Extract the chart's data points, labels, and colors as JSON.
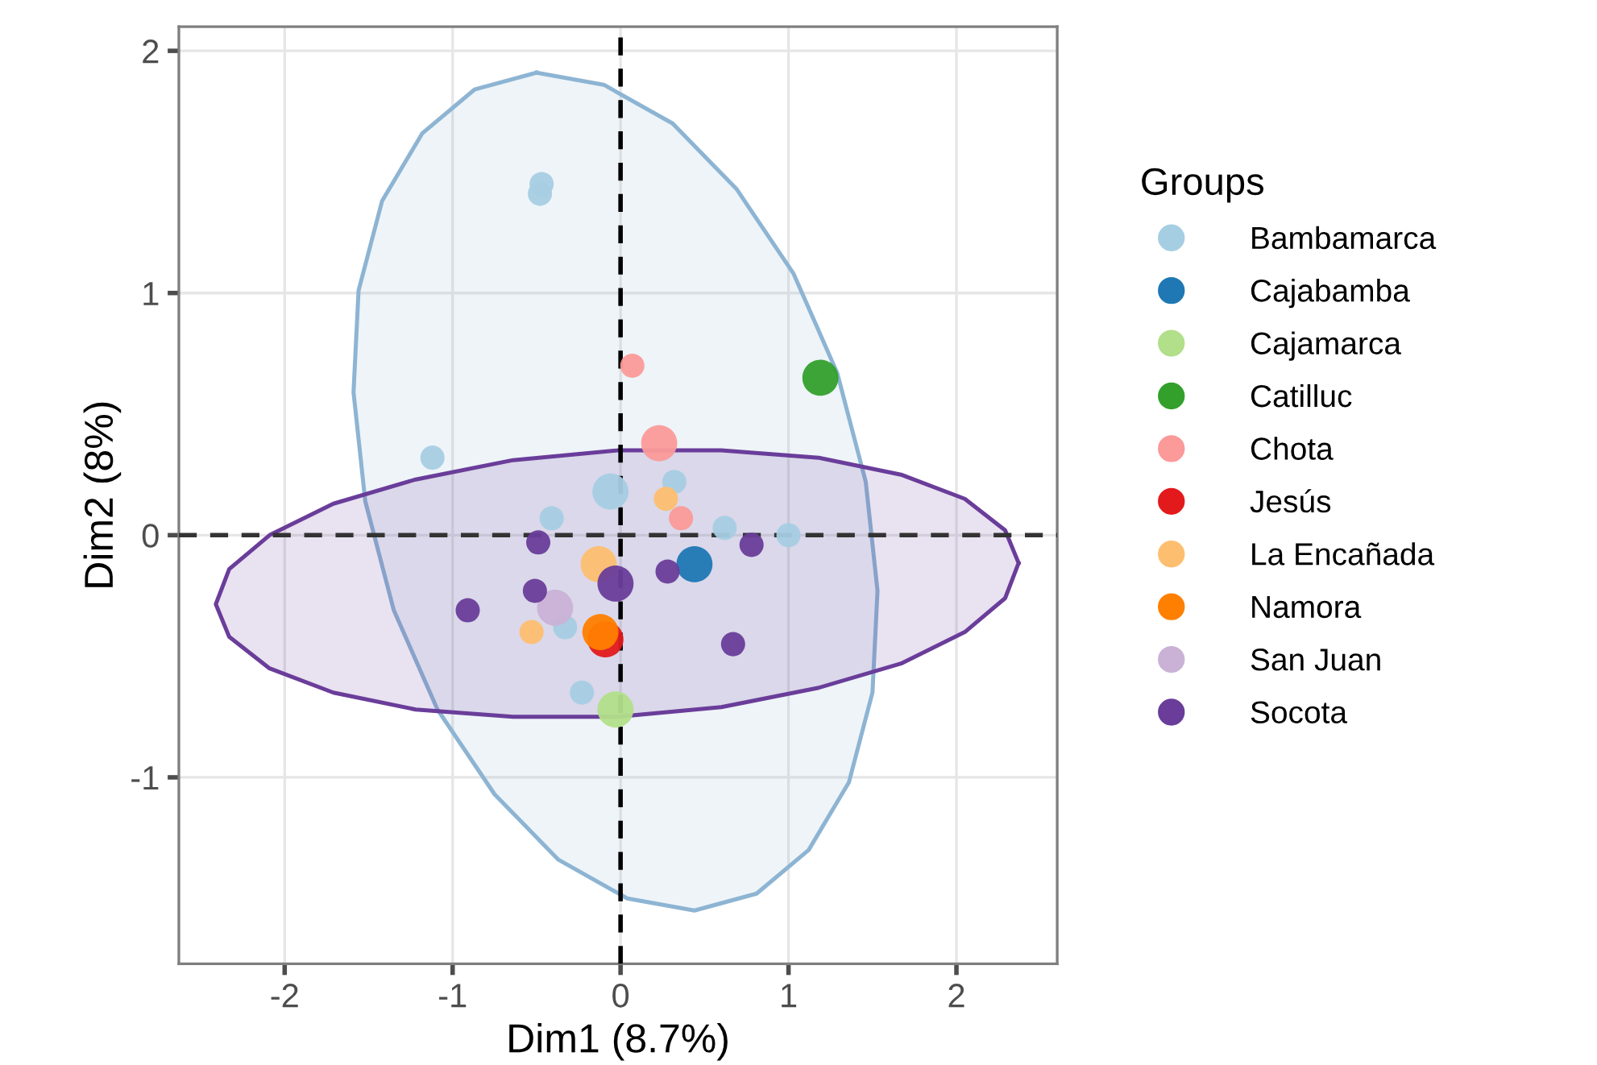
{
  "chart_data": {
    "type": "bubble",
    "xlabel": "Dim1 (8.7%)",
    "ylabel": "Dim2 (8%)",
    "legend_title": "Groups",
    "legend": "right",
    "grid": true,
    "marker": "circle",
    "xlim": [
      -2.63,
      2.6
    ],
    "ylim": [
      -1.77,
      2.1
    ],
    "xticks": [
      -2,
      -1,
      0,
      1,
      2
    ],
    "yticks": [
      -1,
      0,
      1,
      2
    ],
    "ref_lines": [
      {
        "axis": "x",
        "value": 0,
        "color": "#000000",
        "line_style": "dashed"
      },
      {
        "axis": "y",
        "value": 0,
        "color": "#333333",
        "line_style": "dashed"
      }
    ],
    "series": [
      {
        "type": "area",
        "marker": "none",
        "color": "#8db4d3",
        "x": [
          -0.5,
          -0.1,
          0.31,
          0.69,
          1.03,
          1.29,
          1.46,
          1.53,
          1.5,
          1.36,
          1.12,
          0.81,
          0.44,
          0.04,
          -0.37,
          -0.75,
          -1.09,
          -1.35,
          -1.52,
          -1.59,
          -1.56,
          -1.42,
          -1.18,
          -0.87
        ],
        "values": [
          1.91,
          1.86,
          1.7,
          1.43,
          1.08,
          0.67,
          0.22,
          -0.23,
          -0.65,
          -1.02,
          -1.3,
          -1.48,
          -1.55,
          -1.5,
          -1.34,
          -1.07,
          -0.72,
          -0.31,
          0.14,
          0.59,
          1.01,
          1.38,
          1.66,
          1.84
        ]
      },
      {
        "type": "area",
        "marker": "none",
        "color": "#6a3d9a",
        "x": [
          2.37,
          2.29,
          2.05,
          1.67,
          1.18,
          0.6,
          -0.02,
          -0.64,
          -1.22,
          -1.71,
          -2.09,
          -2.33,
          -2.41,
          -2.33,
          -2.09,
          -1.71,
          -1.22,
          -0.64,
          -0.02,
          0.6,
          1.18,
          1.67,
          2.05,
          2.29
        ],
        "values": [
          -0.115,
          0.02,
          0.15,
          0.25,
          0.32,
          0.35,
          0.35,
          0.31,
          0.23,
          0.13,
          0.0,
          -0.14,
          -0.285,
          -0.42,
          -0.55,
          -0.65,
          -0.72,
          -0.75,
          -0.75,
          -0.71,
          -0.63,
          -0.53,
          -0.4,
          -0.26
        ]
      },
      {
        "name": "Bambamarca",
        "color": "#a6cee3",
        "x": [
          -0.48,
          -0.47,
          -1.12,
          -0.06,
          0.32,
          -0.41,
          0.62,
          1.0,
          -0.23,
          -0.33
        ],
        "values": [
          1.41,
          1.45,
          0.32,
          0.18,
          0.22,
          0.07,
          0.03,
          0.0,
          -0.65,
          -0.38
        ],
        "sizes": [
          0.45,
          0.45,
          0.45,
          1,
          0.45,
          0.45,
          0.45,
          0.45,
          0.45,
          0.45
        ]
      },
      {
        "name": "Cajabamba",
        "color": "#1f78b4",
        "x": [
          0.44
        ],
        "values": [
          -0.12
        ],
        "sizes": [
          1
        ]
      },
      {
        "name": "Cajamarca",
        "color": "#b2df8a",
        "x": [
          -0.03
        ],
        "values": [
          -0.72
        ],
        "sizes": [
          1
        ]
      },
      {
        "name": "Catilluc",
        "color": "#33a02c",
        "x": [
          1.19
        ],
        "values": [
          0.65
        ],
        "sizes": [
          1
        ]
      },
      {
        "name": "Chota",
        "color": "#fb9a99",
        "x": [
          0.07,
          0.23,
          0.36
        ],
        "values": [
          0.7,
          0.38,
          0.07
        ],
        "sizes": [
          0.45,
          1,
          0.45
        ]
      },
      {
        "name": "Jesús",
        "color": "#e31a1c",
        "x": [
          -0.09
        ],
        "values": [
          -0.43
        ],
        "sizes": [
          1
        ]
      },
      {
        "name": "La Encañada",
        "color": "#fdbf6f",
        "x": [
          0.27,
          -0.13,
          -0.53
        ],
        "values": [
          0.15,
          -0.12,
          -0.4
        ],
        "sizes": [
          0.45,
          1,
          0.45
        ]
      },
      {
        "name": "Namora",
        "color": "#ff7f00",
        "x": [
          -0.12
        ],
        "values": [
          -0.4
        ],
        "sizes": [
          1
        ]
      },
      {
        "name": "San Juan",
        "color": "#cab2d6",
        "x": [
          -0.39
        ],
        "values": [
          -0.3
        ],
        "sizes": [
          1
        ]
      },
      {
        "name": "Socota",
        "color": "#6a3d9a",
        "x": [
          -0.49,
          0.78,
          0.28,
          -0.03,
          -0.51,
          -0.91,
          0.67
        ],
        "values": [
          -0.03,
          -0.04,
          -0.15,
          -0.2,
          -0.23,
          -0.31,
          -0.45
        ],
        "sizes": [
          0.45,
          0.45,
          0.45,
          1,
          0.45,
          0.45,
          0.45
        ]
      }
    ]
  }
}
